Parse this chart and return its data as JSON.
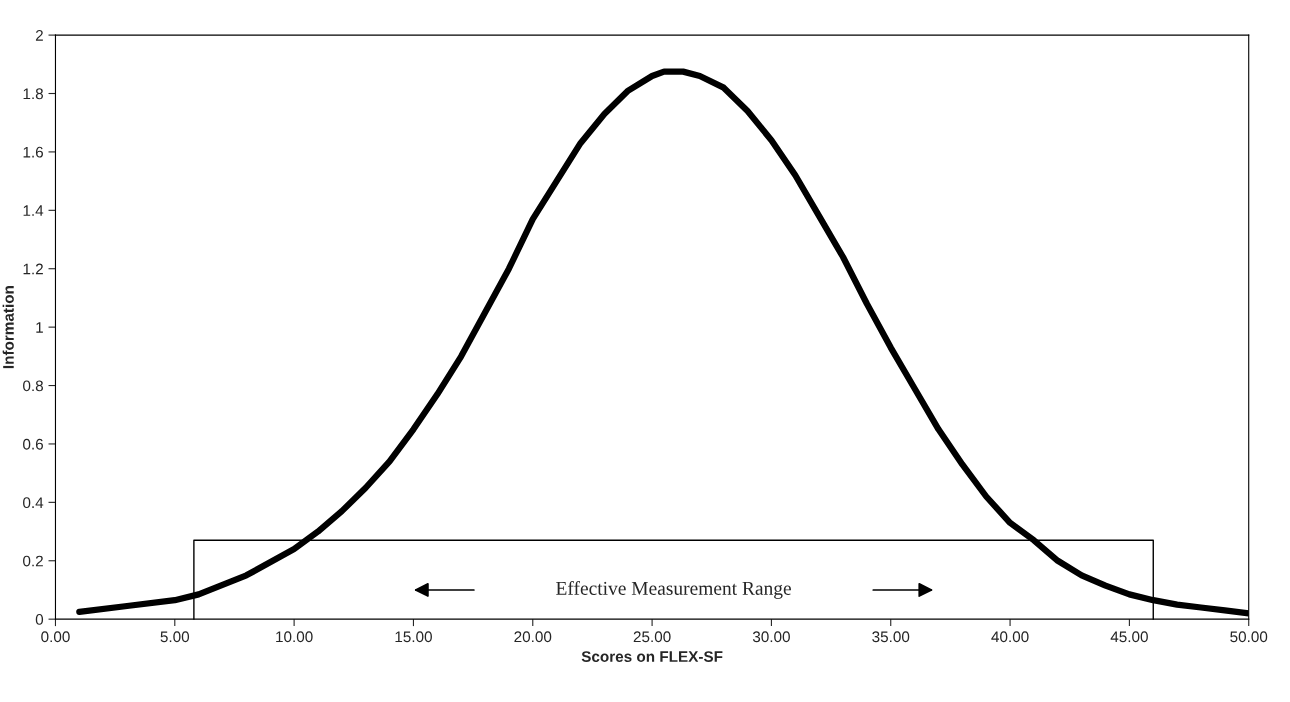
{
  "chart_data": {
    "type": "line",
    "xlabel": "Scores on FLEX-SF",
    "ylabel": "Information",
    "xlim": [
      0,
      50
    ],
    "ylim": [
      0,
      2
    ],
    "xticks": [
      {
        "value": 0,
        "label": "0.00"
      },
      {
        "value": 5,
        "label": "5.00"
      },
      {
        "value": 10,
        "label": "10.00"
      },
      {
        "value": 15,
        "label": "15.00"
      },
      {
        "value": 20,
        "label": "20.00"
      },
      {
        "value": 25,
        "label": "25.00"
      },
      {
        "value": 30,
        "label": "30.00"
      },
      {
        "value": 35,
        "label": "35.00"
      },
      {
        "value": 40,
        "label": "40.00"
      },
      {
        "value": 45,
        "label": "45.00"
      },
      {
        "value": 50,
        "label": "50.00"
      }
    ],
    "yticks": [
      0,
      0.2,
      0.4,
      0.6,
      0.8,
      1,
      1.2,
      1.4,
      1.6,
      1.8,
      2
    ],
    "grid": false,
    "legend": false,
    "series": [
      {
        "color": "#000000",
        "x": [
          1,
          3,
          5,
          6,
          8,
          10,
          11,
          12,
          13,
          14,
          15,
          16,
          17,
          18,
          19,
          20,
          21,
          22,
          23,
          24,
          25,
          25.5,
          26.3,
          27,
          28,
          29,
          30,
          31,
          32,
          33,
          34,
          35,
          36,
          37,
          38,
          39,
          40,
          41,
          42,
          43,
          44,
          45,
          46,
          47,
          48,
          49,
          50
        ],
        "values": [
          0.025,
          0.045,
          0.065,
          0.085,
          0.15,
          0.24,
          0.3,
          0.37,
          0.45,
          0.54,
          0.65,
          0.77,
          0.9,
          1.05,
          1.2,
          1.37,
          1.5,
          1.63,
          1.73,
          1.81,
          1.86,
          1.875,
          1.875,
          1.86,
          1.82,
          1.74,
          1.64,
          1.52,
          1.38,
          1.24,
          1.08,
          0.93,
          0.79,
          0.65,
          0.53,
          0.42,
          0.33,
          0.27,
          0.2,
          0.15,
          0.115,
          0.085,
          0.065,
          0.05,
          0.04,
          0.03,
          0.02
        ]
      },
      {
        "color": "#000000",
        "x": [
          5.8,
          5.8,
          46,
          46
        ],
        "values": [
          0,
          0.27,
          0.27,
          0
        ]
      }
    ],
    "annotations": [
      "Effective Measurement Range"
    ]
  }
}
